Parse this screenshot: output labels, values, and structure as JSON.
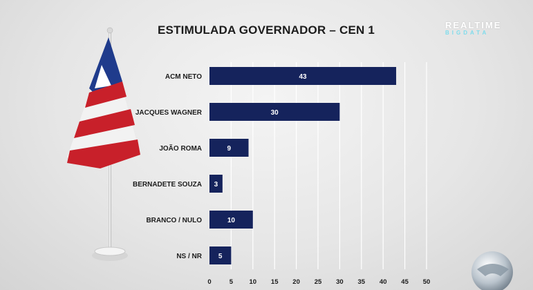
{
  "title": "ESTIMULADA GOVERNADOR – CEN 1",
  "brand": {
    "top": "REALTIME",
    "bottom": "BIGDATA"
  },
  "colors": {
    "bar": "#15235c",
    "bar_label": "#ffffff",
    "grid": "#ffffff",
    "text": "#1c1c1c"
  },
  "icons": {
    "flag": "bahia-flag-icon",
    "logo": "record-tv-logo-icon"
  },
  "chart_data": {
    "type": "bar",
    "orientation": "horizontal",
    "title": "ESTIMULADA GOVERNADOR – CEN 1",
    "categories": [
      "ACM NETO",
      "JACQUES WAGNER",
      "JOÃO ROMA",
      "BERNADETE SOUZA",
      "BRANCO / NULO",
      "NS / NR"
    ],
    "values": [
      43,
      30,
      9,
      3,
      10,
      5
    ],
    "xlim": [
      0,
      50
    ],
    "xticks": [
      0,
      5,
      10,
      15,
      20,
      25,
      30,
      35,
      40,
      45,
      50
    ],
    "grid": true,
    "legend": "none",
    "xlabel": "",
    "ylabel": ""
  }
}
